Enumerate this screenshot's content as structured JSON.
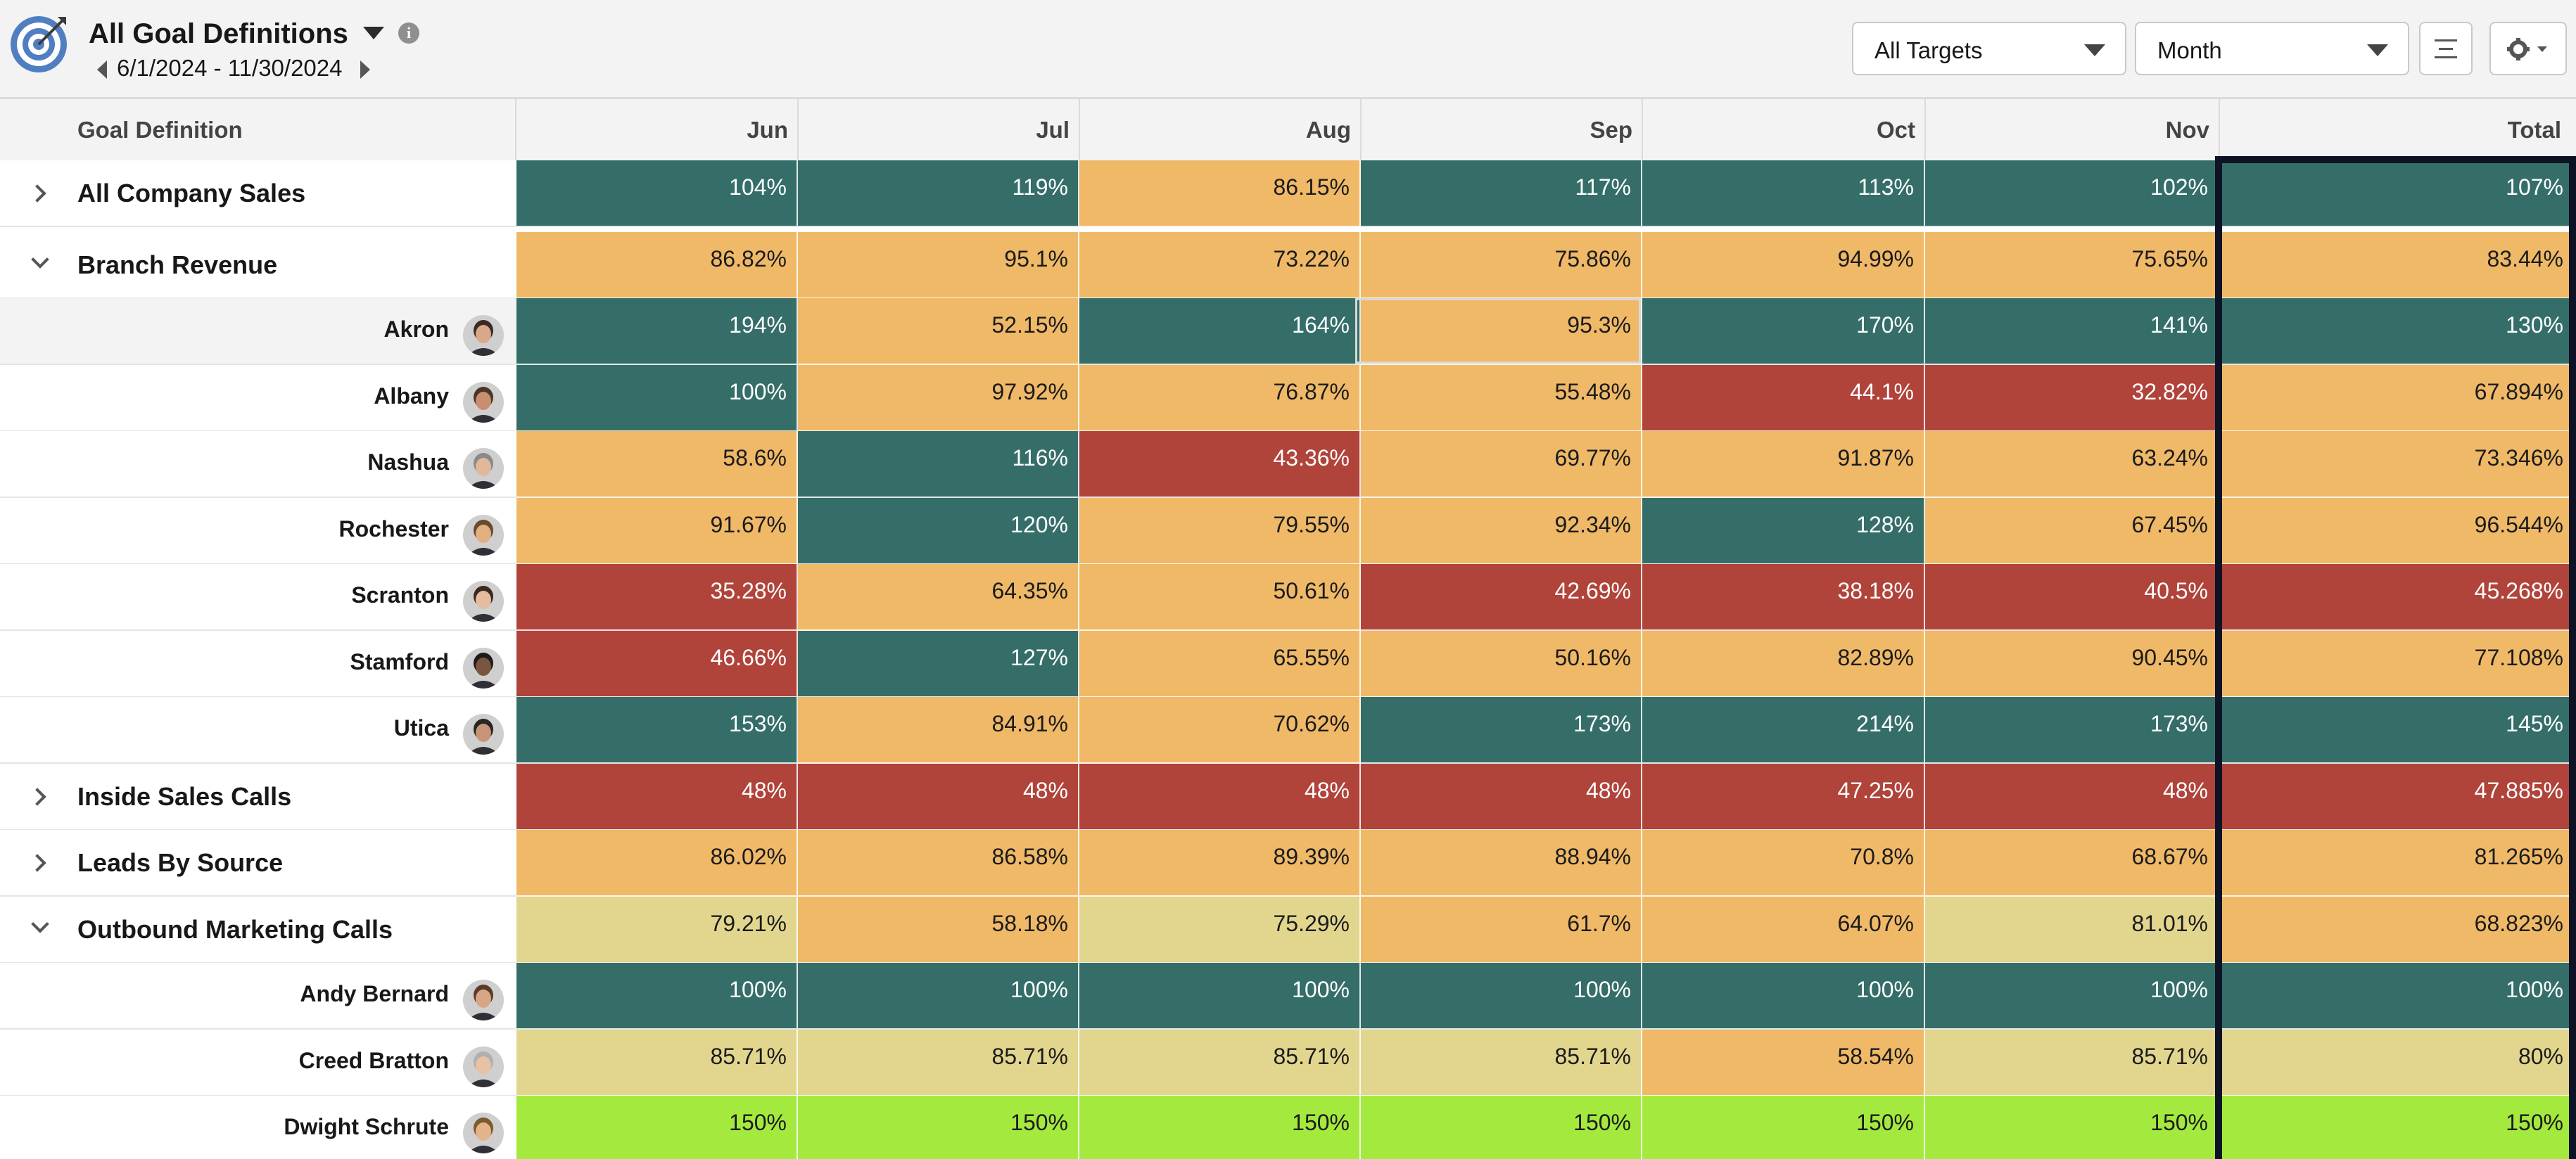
{
  "header": {
    "title": "All Goal Definitions",
    "date_range": "6/1/2024 - 11/30/2024",
    "icons": {
      "app": "target-icon",
      "info": "info-icon",
      "list": "list-icon",
      "settings": "gear-icon"
    },
    "info_glyph": "i",
    "targets_select": {
      "value": "All Targets"
    },
    "period_select": {
      "value": "Month"
    }
  },
  "table": {
    "first_column_header": "Goal Definition",
    "month_headers": [
      "Jun",
      "Jul",
      "Aug",
      "Sep",
      "Oct",
      "Nov"
    ],
    "total_header": "Total",
    "status_colors": {
      "green": "#356e68",
      "orange": "#efb968",
      "red": "#b0433a",
      "khaki": "#e2d68f",
      "lime": "#a4ea3e"
    },
    "rows": [
      {
        "label": "All Company Sales",
        "type": "group",
        "expanded": false,
        "values": [
          "104%",
          "119%",
          "86.15%",
          "117%",
          "113%",
          "102%"
        ],
        "total": "107%",
        "colors": [
          "green",
          "green",
          "orange",
          "green",
          "green",
          "green",
          "green"
        ]
      },
      {
        "label": "Branch Revenue",
        "type": "group",
        "expanded": true,
        "values": [
          "86.82%",
          "95.1%",
          "73.22%",
          "75.86%",
          "94.99%",
          "75.65%"
        ],
        "total": "83.44%",
        "colors": [
          "orange",
          "orange",
          "orange",
          "orange",
          "orange",
          "orange",
          "orange"
        ]
      },
      {
        "label": "Akron",
        "type": "member",
        "values": [
          "194%",
          "52.15%",
          "164%",
          "95.3%",
          "170%",
          "141%"
        ],
        "total": "130%",
        "colors": [
          "green",
          "orange",
          "green",
          "orange",
          "green",
          "green",
          "green"
        ]
      },
      {
        "label": "Albany",
        "type": "member",
        "values": [
          "100%",
          "97.92%",
          "76.87%",
          "55.48%",
          "44.1%",
          "32.82%"
        ],
        "total": "67.894%",
        "colors": [
          "green",
          "orange",
          "orange",
          "orange",
          "red",
          "red",
          "orange"
        ]
      },
      {
        "label": "Nashua",
        "type": "member",
        "values": [
          "58.6%",
          "116%",
          "43.36%",
          "69.77%",
          "91.87%",
          "63.24%"
        ],
        "total": "73.346%",
        "colors": [
          "orange",
          "green",
          "red",
          "orange",
          "orange",
          "orange",
          "orange"
        ]
      },
      {
        "label": "Rochester",
        "type": "member",
        "values": [
          "91.67%",
          "120%",
          "79.55%",
          "92.34%",
          "128%",
          "67.45%"
        ],
        "total": "96.544%",
        "colors": [
          "orange",
          "green",
          "orange",
          "orange",
          "green",
          "orange",
          "orange"
        ]
      },
      {
        "label": "Scranton",
        "type": "member",
        "values": [
          "35.28%",
          "64.35%",
          "50.61%",
          "42.69%",
          "38.18%",
          "40.5%"
        ],
        "total": "45.268%",
        "colors": [
          "red",
          "orange",
          "orange",
          "red",
          "red",
          "red",
          "red"
        ]
      },
      {
        "label": "Stamford",
        "type": "member",
        "values": [
          "46.66%",
          "127%",
          "65.55%",
          "50.16%",
          "82.89%",
          "90.45%"
        ],
        "total": "77.108%",
        "colors": [
          "red",
          "green",
          "orange",
          "orange",
          "orange",
          "orange",
          "orange"
        ]
      },
      {
        "label": "Utica",
        "type": "member",
        "values": [
          "153%",
          "84.91%",
          "70.62%",
          "173%",
          "214%",
          "173%"
        ],
        "total": "145%",
        "colors": [
          "green",
          "orange",
          "orange",
          "green",
          "green",
          "green",
          "green"
        ]
      },
      {
        "label": "Inside Sales Calls",
        "type": "group",
        "expanded": false,
        "values": [
          "48%",
          "48%",
          "48%",
          "48%",
          "47.25%",
          "48%"
        ],
        "total": "47.885%",
        "colors": [
          "red",
          "red",
          "red",
          "red",
          "red",
          "red",
          "red"
        ]
      },
      {
        "label": "Leads By Source",
        "type": "group",
        "expanded": false,
        "values": [
          "86.02%",
          "86.58%",
          "89.39%",
          "88.94%",
          "70.8%",
          "68.67%"
        ],
        "total": "81.265%",
        "colors": [
          "orange",
          "orange",
          "orange",
          "orange",
          "orange",
          "orange",
          "orange"
        ]
      },
      {
        "label": "Outbound Marketing Calls",
        "type": "group",
        "expanded": true,
        "values": [
          "79.21%",
          "58.18%",
          "75.29%",
          "61.7%",
          "64.07%",
          "81.01%"
        ],
        "total": "68.823%",
        "colors": [
          "khaki",
          "orange",
          "khaki",
          "orange",
          "orange",
          "khaki",
          "orange"
        ]
      },
      {
        "label": "Andy Bernard",
        "type": "member",
        "values": [
          "100%",
          "100%",
          "100%",
          "100%",
          "100%",
          "100%"
        ],
        "total": "100%",
        "colors": [
          "green",
          "green",
          "green",
          "green",
          "green",
          "green",
          "green"
        ]
      },
      {
        "label": "Creed Bratton",
        "type": "member",
        "values": [
          "85.71%",
          "85.71%",
          "85.71%",
          "85.71%",
          "58.54%",
          "85.71%"
        ],
        "total": "80%",
        "colors": [
          "khaki",
          "khaki",
          "khaki",
          "khaki",
          "orange",
          "khaki",
          "khaki"
        ]
      },
      {
        "label": "Dwight Schrute",
        "type": "member",
        "values": [
          "150%",
          "150%",
          "150%",
          "150%",
          "150%",
          "150%"
        ],
        "total": "150%",
        "colors": [
          "lime",
          "lime",
          "lime",
          "lime",
          "lime",
          "lime",
          "lime"
        ]
      }
    ]
  }
}
